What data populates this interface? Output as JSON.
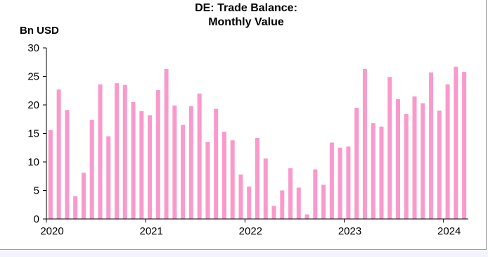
{
  "chart_data": {
    "type": "bar",
    "title_line1": "DE: Trade Balance:",
    "title_line2": "Monthly Value",
    "ylabel": "Bn USD",
    "xlabel": "",
    "ylim": [
      0,
      30
    ],
    "yticks": [
      "0",
      "5",
      "10",
      "15",
      "20",
      "25",
      "30"
    ],
    "xticks": [
      "2020",
      "2021",
      "2022",
      "2023",
      "2024"
    ],
    "bar_color": "#f99acb",
    "grid": false,
    "categories": [
      "2020-01",
      "2020-02",
      "2020-03",
      "2020-04",
      "2020-05",
      "2020-06",
      "2020-07",
      "2020-08",
      "2020-09",
      "2020-10",
      "2020-11",
      "2020-12",
      "2021-01",
      "2021-02",
      "2021-03",
      "2021-04",
      "2021-05",
      "2021-06",
      "2021-07",
      "2021-08",
      "2021-09",
      "2021-10",
      "2021-11",
      "2021-12",
      "2022-01",
      "2022-02",
      "2022-03",
      "2022-04",
      "2022-05",
      "2022-06",
      "2022-07",
      "2022-08",
      "2022-09",
      "2022-10",
      "2022-11",
      "2022-12",
      "2023-01",
      "2023-02",
      "2023-03",
      "2023-04",
      "2023-05",
      "2023-06",
      "2023-07",
      "2023-08",
      "2023-09",
      "2023-10",
      "2023-11",
      "2023-12",
      "2024-01",
      "2024-02",
      "2024-03"
    ],
    "values": [
      15.6,
      22.7,
      19.1,
      4.0,
      8.1,
      17.4,
      23.6,
      14.5,
      23.8,
      23.5,
      20.5,
      18.9,
      18.2,
      22.6,
      26.3,
      19.9,
      16.5,
      19.8,
      22.0,
      13.5,
      19.3,
      15.3,
      13.8,
      7.8,
      5.7,
      14.2,
      10.6,
      2.3,
      5.0,
      8.9,
      5.5,
      0.8,
      8.7,
      6.0,
      13.4,
      12.5,
      12.7,
      19.5,
      26.3,
      16.8,
      16.2,
      24.9,
      21.0,
      18.4,
      21.5,
      20.3,
      25.7,
      19.0,
      23.6,
      26.7,
      25.8
    ]
  }
}
